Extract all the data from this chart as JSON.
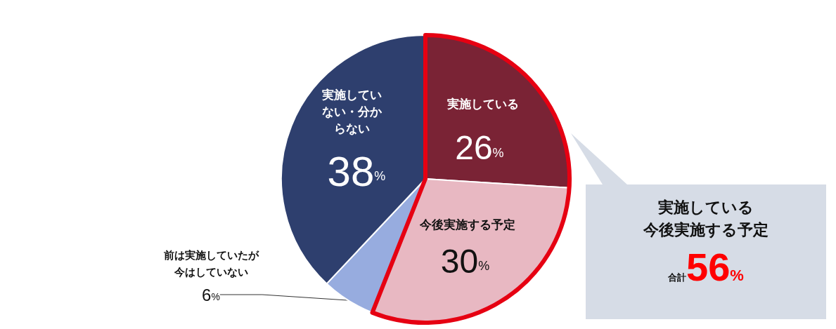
{
  "chart_data": {
    "type": "pie",
    "categories": [
      "実施している",
      "今後実施する予定",
      "前は実施していたが今はしていない",
      "実施していない・分からない"
    ],
    "values": [
      26,
      30,
      6,
      38
    ],
    "value_labels": [
      "26%",
      "30%",
      "6%",
      "38%"
    ],
    "colors": [
      "#7a2335",
      "#e8b8c2",
      "#97acdf",
      "#2e3f6e"
    ],
    "legend": false,
    "annotations": [
      "実施している",
      "今後実施する予定",
      "合計56%"
    ]
  }
}
